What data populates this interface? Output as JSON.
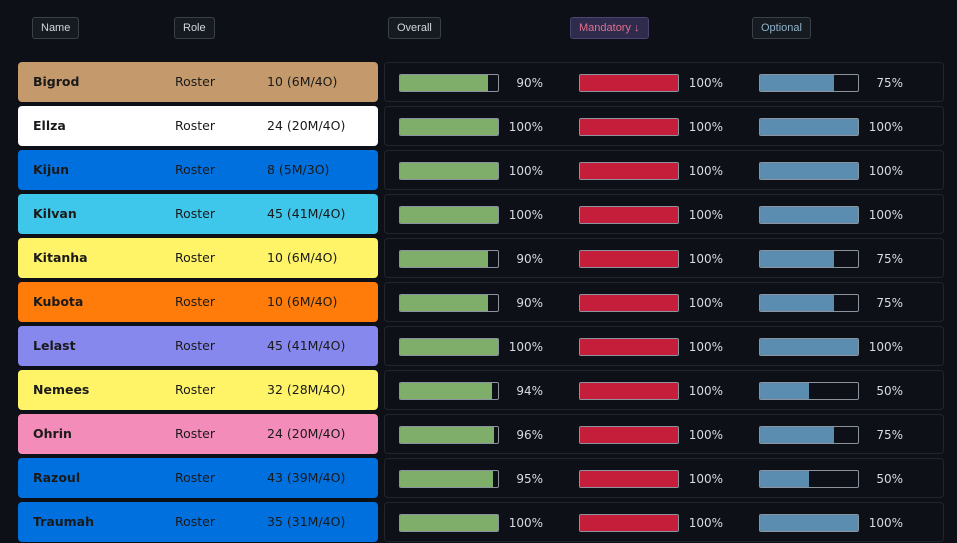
{
  "headers": {
    "name": "Name",
    "role": "Role",
    "overall": "Overall",
    "mandatory": "Mandatory ↓",
    "optional": "Optional"
  },
  "colors": {
    "overall_bar": "#7fae6b",
    "mandatory_bar": "#c41e3a",
    "optional_bar": "#5b8db0"
  },
  "rows": [
    {
      "name": "Bigrod",
      "role": "Roster",
      "count": "10 (6M/4O)",
      "color": "#c49a6c",
      "overall": 90,
      "overall_label": "90%",
      "mandatory": 100,
      "mandatory_label": "100%",
      "optional": 75,
      "optional_label": "75%"
    },
    {
      "name": "Ellza",
      "role": "Roster",
      "count": "24 (20M/4O)",
      "color": "#ffffff",
      "overall": 100,
      "overall_label": "100%",
      "mandatory": 100,
      "mandatory_label": "100%",
      "optional": 100,
      "optional_label": "100%"
    },
    {
      "name": "Kijun",
      "role": "Roster",
      "count": "8 (5M/3O)",
      "color": "#0070de",
      "overall": 100,
      "overall_label": "100%",
      "mandatory": 100,
      "mandatory_label": "100%",
      "optional": 100,
      "optional_label": "100%"
    },
    {
      "name": "Kilvan",
      "role": "Roster",
      "count": "45 (41M/4O)",
      "color": "#3fc7eb",
      "overall": 100,
      "overall_label": "100%",
      "mandatory": 100,
      "mandatory_label": "100%",
      "optional": 100,
      "optional_label": "100%"
    },
    {
      "name": "Kitanha",
      "role": "Roster",
      "count": "10 (6M/4O)",
      "color": "#fff468",
      "overall": 90,
      "overall_label": "90%",
      "mandatory": 100,
      "mandatory_label": "100%",
      "optional": 75,
      "optional_label": "75%"
    },
    {
      "name": "Kubota",
      "role": "Roster",
      "count": "10 (6M/4O)",
      "color": "#ff7c0a",
      "overall": 90,
      "overall_label": "90%",
      "mandatory": 100,
      "mandatory_label": "100%",
      "optional": 75,
      "optional_label": "75%"
    },
    {
      "name": "Lelast",
      "role": "Roster",
      "count": "45 (41M/4O)",
      "color": "#8788ee",
      "overall": 100,
      "overall_label": "100%",
      "mandatory": 100,
      "mandatory_label": "100%",
      "optional": 100,
      "optional_label": "100%"
    },
    {
      "name": "Nemees",
      "role": "Roster",
      "count": "32 (28M/4O)",
      "color": "#fff468",
      "overall": 94,
      "overall_label": "94%",
      "mandatory": 100,
      "mandatory_label": "100%",
      "optional": 50,
      "optional_label": "50%"
    },
    {
      "name": "Ohrin",
      "role": "Roster",
      "count": "24 (20M/4O)",
      "color": "#f48cba",
      "overall": 96,
      "overall_label": "96%",
      "mandatory": 100,
      "mandatory_label": "100%",
      "optional": 75,
      "optional_label": "75%"
    },
    {
      "name": "Razoul",
      "role": "Roster",
      "count": "43 (39M/4O)",
      "color": "#0070de",
      "overall": 95,
      "overall_label": "95%",
      "mandatory": 100,
      "mandatory_label": "100%",
      "optional": 50,
      "optional_label": "50%"
    },
    {
      "name": "Traumah",
      "role": "Roster",
      "count": "35 (31M/4O)",
      "color": "#0070de",
      "overall": 100,
      "overall_label": "100%",
      "mandatory": 100,
      "mandatory_label": "100%",
      "optional": 100,
      "optional_label": "100%"
    }
  ]
}
